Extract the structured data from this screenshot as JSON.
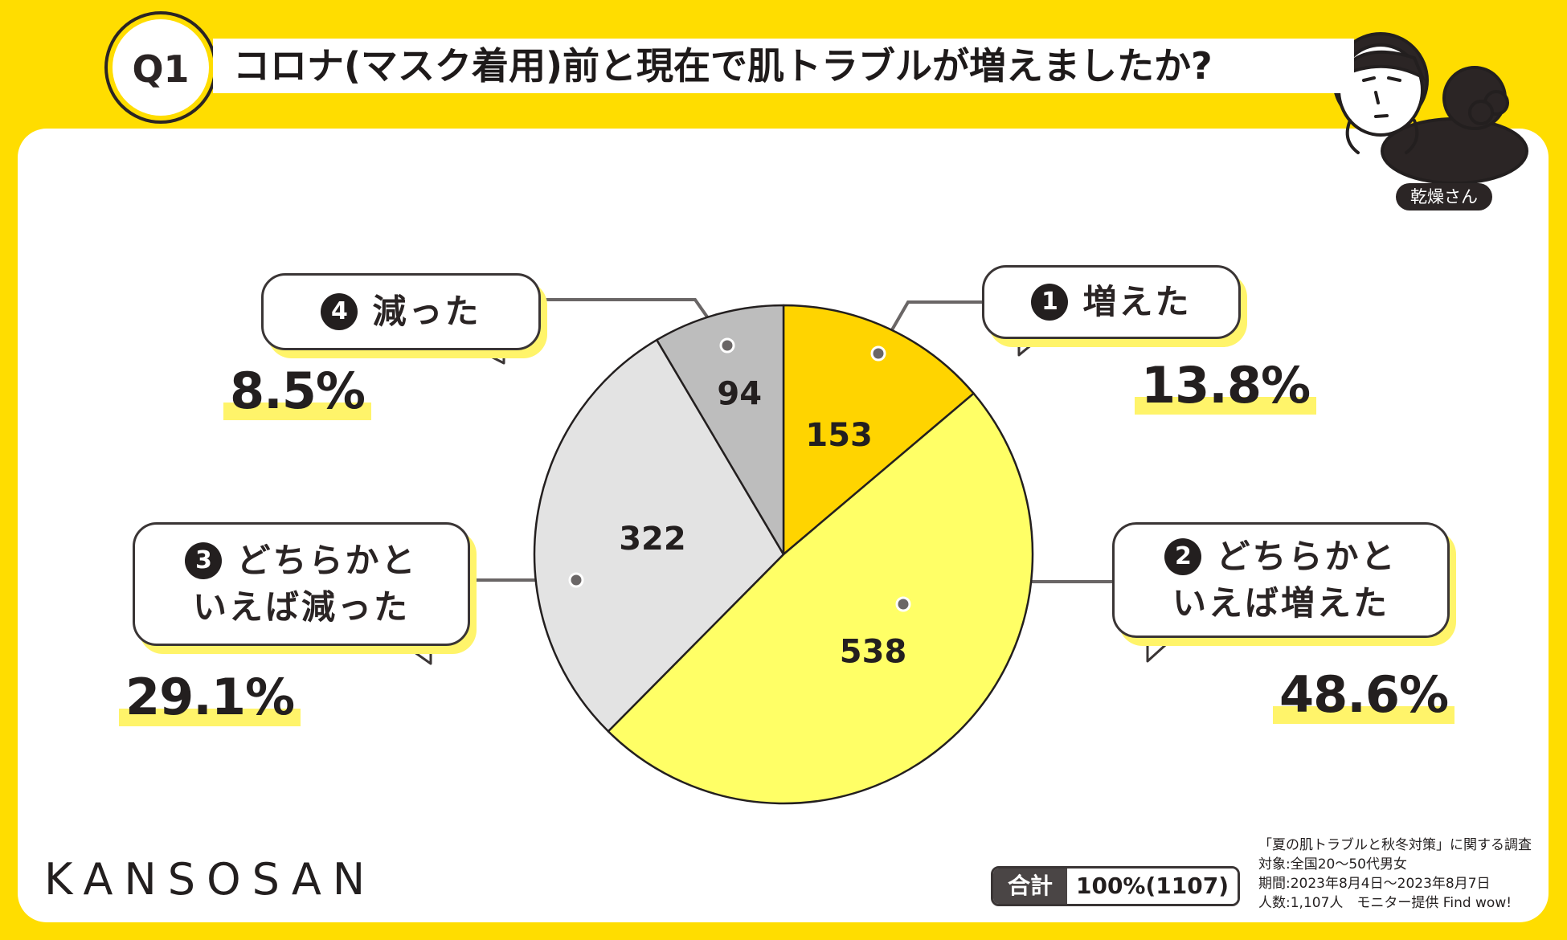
{
  "header": {
    "badge": "Q1",
    "title": "コロナ(マスク着用)前と現在で肌トラブルが増えましたか?"
  },
  "character": {
    "label": "乾燥さん"
  },
  "chart_data": {
    "type": "pie",
    "title": "コロナ(マスク着用)前と現在で肌トラブルが増えましたか?",
    "slices": [
      {
        "marker": "1",
        "label_lines": [
          "増えた"
        ],
        "value": 153,
        "percent": "13.8%",
        "color": "#ffd400"
      },
      {
        "marker": "2",
        "label_lines": [
          "どちらかと",
          "いえば増えた"
        ],
        "value": 538,
        "percent": "48.6%",
        "color": "#ffff66"
      },
      {
        "marker": "3",
        "label_lines": [
          "どちらかと",
          "いえば減った"
        ],
        "value": 322,
        "percent": "29.1%",
        "color": "#e3e3e3"
      },
      {
        "marker": "4",
        "label_lines": [
          "減った"
        ],
        "value": 94,
        "percent": "8.5%",
        "color": "#bdbdbd"
      }
    ],
    "total_label": "合計",
    "total_value": "100%(1107)"
  },
  "footer": {
    "brand": "KANSOSAN",
    "notes": [
      "「夏の肌トラブルと秋冬対策」に関する調査",
      "対象:全国20〜50代男女",
      "期間:2023年8月4日〜2023年8月7日",
      "人数:1,107人　モニター提供 Find wow!"
    ]
  }
}
